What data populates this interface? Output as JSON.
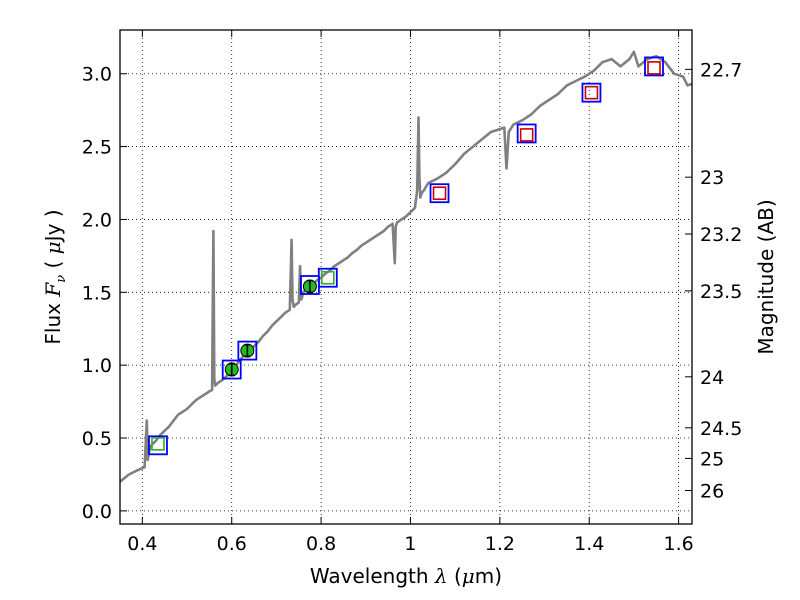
{
  "chart_data": {
    "type": "line",
    "xlabel": {
      "prefix": "Wavelength",
      "symbol": "λ",
      "unit_open": "(",
      "unit_mu": "μ",
      "unit_rest": "m)"
    },
    "ylabel": {
      "prefix": "Flux",
      "symbol": "F",
      "subscript": "ν",
      "unit_open": "(",
      "unit_mu": "μ",
      "unit_rest": "Jy )"
    },
    "ylabel_right": "Magnitude (AB)",
    "xlim": [
      0.35,
      1.63
    ],
    "ylim": [
      -0.09,
      3.3
    ],
    "grid": true,
    "x_ticks": [
      {
        "value": 0.4,
        "label": "0.4"
      },
      {
        "value": 0.6,
        "label": "0.6"
      },
      {
        "value": 0.8,
        "label": "0.8"
      },
      {
        "value": 1.0,
        "label": "1"
      },
      {
        "value": 1.2,
        "label": "1.2"
      },
      {
        "value": 1.4,
        "label": "1.4"
      },
      {
        "value": 1.6,
        "label": "1.6"
      }
    ],
    "y_ticks": [
      {
        "value": 0.0,
        "label": "0.0"
      },
      {
        "value": 0.5,
        "label": "0.5"
      },
      {
        "value": 1.0,
        "label": "1.0"
      },
      {
        "value": 1.5,
        "label": "1.5"
      },
      {
        "value": 2.0,
        "label": "2.0"
      },
      {
        "value": 2.5,
        "label": "2.5"
      },
      {
        "value": 3.0,
        "label": "3.0"
      }
    ],
    "right_ticks": [
      {
        "flux": 3.03,
        "label": "22.7"
      },
      {
        "flux": 2.29,
        "label": "23"
      },
      {
        "flux": 1.9,
        "label": "23.2"
      },
      {
        "flux": 1.51,
        "label": "23.5"
      },
      {
        "flux": 0.92,
        "label": "24"
      },
      {
        "flux": 0.57,
        "label": "24.5"
      },
      {
        "flux": 0.36,
        "label": "25"
      },
      {
        "flux": 0.14,
        "label": "26"
      }
    ],
    "series": [
      {
        "kind": "spectrum",
        "color": "#808080",
        "x": [
          0.35,
          0.37,
          0.39,
          0.405,
          0.41,
          0.412,
          0.416,
          0.42,
          0.43,
          0.44,
          0.45,
          0.46,
          0.47,
          0.48,
          0.49,
          0.5,
          0.51,
          0.52,
          0.53,
          0.54,
          0.55,
          0.556,
          0.559,
          0.561,
          0.563,
          0.57,
          0.58,
          0.59,
          0.6,
          0.61,
          0.62,
          0.63,
          0.64,
          0.65,
          0.66,
          0.67,
          0.68,
          0.69,
          0.7,
          0.71,
          0.72,
          0.73,
          0.734,
          0.736,
          0.739,
          0.745,
          0.75,
          0.753,
          0.755,
          0.757,
          0.76,
          0.77,
          0.78,
          0.79,
          0.8,
          0.81,
          0.82,
          0.83,
          0.84,
          0.85,
          0.86,
          0.87,
          0.88,
          0.89,
          0.9,
          0.91,
          0.92,
          0.93,
          0.94,
          0.95,
          0.96,
          0.965,
          0.967,
          0.97,
          0.98,
          0.99,
          1.0,
          1.01,
          1.015,
          1.018,
          1.02,
          1.022,
          1.025,
          1.03,
          1.04,
          1.06,
          1.08,
          1.1,
          1.12,
          1.14,
          1.16,
          1.18,
          1.2,
          1.21,
          1.215,
          1.22,
          1.23,
          1.25,
          1.27,
          1.29,
          1.31,
          1.33,
          1.35,
          1.37,
          1.39,
          1.41,
          1.43,
          1.45,
          1.47,
          1.49,
          1.5,
          1.51,
          1.53,
          1.55,
          1.57,
          1.59,
          1.61,
          1.62,
          1.63
        ],
        "y": [
          0.2,
          0.25,
          0.28,
          0.3,
          0.62,
          0.35,
          0.42,
          0.45,
          0.48,
          0.52,
          0.55,
          0.58,
          0.62,
          0.66,
          0.68,
          0.7,
          0.73,
          0.76,
          0.78,
          0.8,
          0.82,
          0.83,
          1.92,
          0.9,
          0.86,
          0.88,
          0.9,
          0.93,
          0.96,
          1.0,
          1.04,
          1.08,
          1.1,
          1.13,
          1.16,
          1.2,
          1.23,
          1.27,
          1.3,
          1.33,
          1.36,
          1.38,
          1.86,
          1.45,
          1.4,
          1.42,
          1.43,
          1.68,
          1.45,
          1.46,
          1.5,
          1.53,
          1.55,
          1.58,
          1.6,
          1.63,
          1.65,
          1.68,
          1.7,
          1.72,
          1.74,
          1.77,
          1.79,
          1.82,
          1.84,
          1.86,
          1.88,
          1.9,
          1.92,
          1.95,
          1.97,
          1.7,
          1.95,
          1.98,
          2.0,
          2.02,
          2.05,
          2.08,
          2.2,
          2.7,
          2.3,
          2.15,
          2.18,
          2.2,
          2.25,
          2.28,
          2.32,
          2.38,
          2.45,
          2.5,
          2.55,
          2.6,
          2.62,
          2.63,
          2.35,
          2.6,
          2.65,
          2.68,
          2.72,
          2.78,
          2.82,
          2.86,
          2.92,
          2.95,
          2.98,
          3.02,
          3.08,
          3.1,
          3.05,
          3.1,
          3.15,
          3.05,
          3.1,
          3.12,
          3.08,
          3.0,
          2.98,
          2.92,
          2.93
        ]
      },
      {
        "kind": "photometry-box",
        "marker": "square",
        "edge_color": "#0000ff",
        "x": [
          0.435,
          0.6,
          0.635,
          0.775,
          0.815,
          1.065,
          1.26,
          1.405,
          1.545
        ],
        "y": [
          0.45,
          0.97,
          1.1,
          1.55,
          1.6,
          2.18,
          2.59,
          2.87,
          3.05
        ]
      },
      {
        "kind": "model-photometry",
        "marker": "square",
        "edge_color": "#cc0000",
        "x": [
          1.065,
          1.26,
          1.405,
          1.545
        ],
        "y": [
          2.18,
          2.58,
          2.87,
          3.04
        ]
      },
      {
        "kind": "model-photometry",
        "marker": "square",
        "edge_color": "#33aa33",
        "x": [
          0.435,
          0.815
        ],
        "y": [
          0.46,
          1.6
        ]
      },
      {
        "kind": "measurement",
        "marker": "circle",
        "face_color": "#22bb22",
        "x": [
          0.6,
          0.635,
          0.775
        ],
        "y": [
          0.97,
          1.1,
          1.54
        ],
        "yerr": [
          0.04,
          0.04,
          0.04
        ]
      }
    ]
  }
}
